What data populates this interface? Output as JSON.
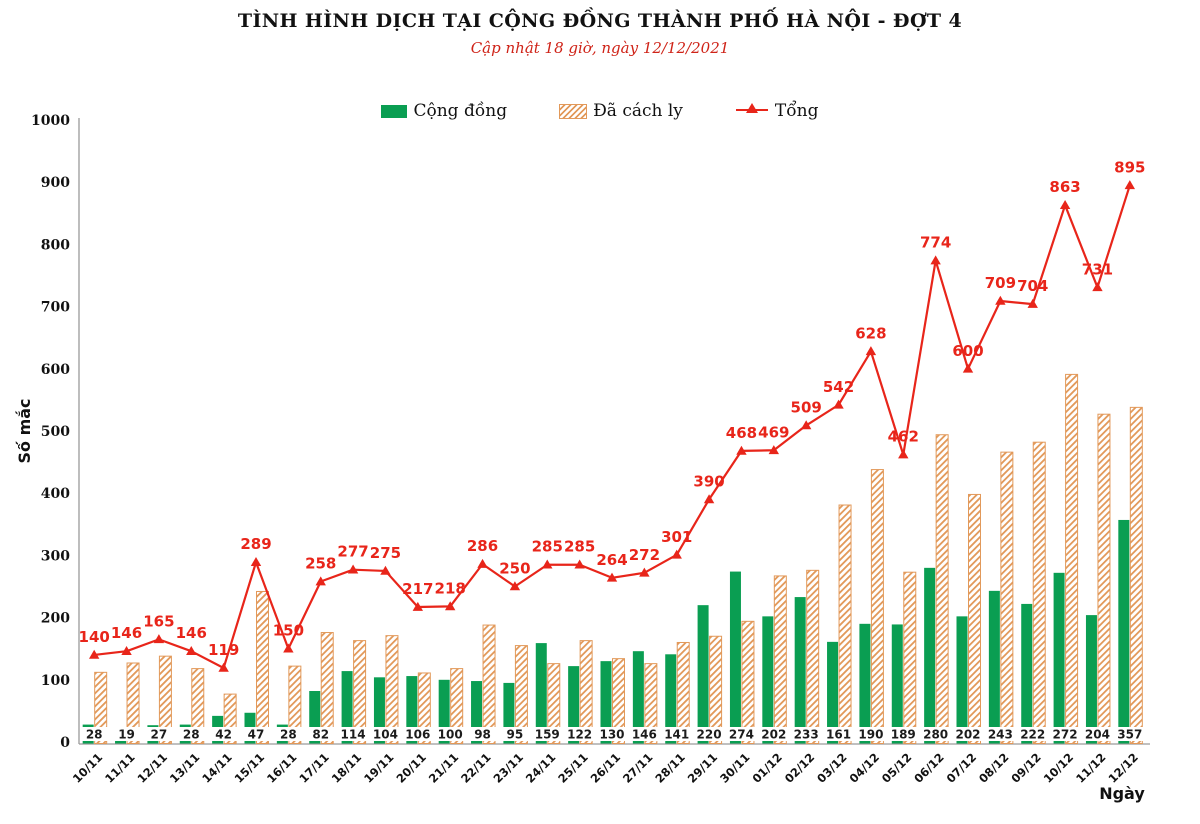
{
  "title": "TÌNH HÌNH DỊCH TẠI CỘNG ĐỒNG THÀNH PHỐ HÀ NỘI - ĐỢT 4",
  "subtitle": "Cập nhật 18 giờ, ngày 12/12/2021",
  "legend": {
    "community": "Cộng đồng",
    "quarantined": "Đã cách ly",
    "total": "Tổng"
  },
  "axes": {
    "y_label": "Số mắc",
    "x_label": "Ngày",
    "y_ticks": [
      0,
      100,
      200,
      300,
      400,
      500,
      600,
      700,
      800,
      900,
      1000
    ]
  },
  "colors": {
    "community_green": "#0a9e52",
    "hatch_orange": "#e2995a",
    "total_red": "#e8251a",
    "subtitle_red": "#cf2318",
    "axis_gray": "#9a9a9a",
    "label_black": "#1c1c1c"
  },
  "chart_data": {
    "type": "bar",
    "title": "TÌNH HÌNH DỊCH TẠI CỘNG ĐỒNG THÀNH PHỐ HÀ NỘI - ĐỢT 4",
    "subtitle": "Cập nhật 18 giờ, ngày 12/12/2021",
    "xlabel": "Ngày",
    "ylabel": "Số mắc",
    "ylim": [
      0,
      1000
    ],
    "grid": false,
    "legend_position": "top",
    "categories": [
      "10/11",
      "11/11",
      "12/11",
      "13/11",
      "14/11",
      "15/11",
      "16/11",
      "17/11",
      "18/11",
      "19/11",
      "20/11",
      "21/11",
      "22/11",
      "23/11",
      "24/11",
      "25/11",
      "26/11",
      "27/11",
      "28/11",
      "29/11",
      "30/11",
      "01/12",
      "02/12",
      "03/12",
      "04/12",
      "05/12",
      "06/12",
      "07/12",
      "08/12",
      "09/12",
      "10/12",
      "11/12",
      "12/12"
    ],
    "series": [
      {
        "name": "Cộng đồng",
        "type": "bar",
        "style": "solid-green",
        "labeled": true,
        "values": [
          28,
          19,
          27,
          28,
          42,
          47,
          28,
          82,
          114,
          104,
          106,
          100,
          98,
          95,
          159,
          122,
          130,
          146,
          141,
          220,
          274,
          202,
          233,
          161,
          190,
          189,
          280,
          202,
          243,
          222,
          272,
          204,
          357
        ]
      },
      {
        "name": "Đã cách ly",
        "type": "bar",
        "style": "hatched-orange",
        "labeled": false,
        "values": [
          112,
          127,
          138,
          118,
          77,
          242,
          122,
          176,
          163,
          171,
          111,
          118,
          188,
          155,
          126,
          163,
          134,
          126,
          160,
          170,
          194,
          267,
          276,
          381,
          438,
          273,
          494,
          398,
          466,
          482,
          591,
          527,
          538
        ]
      },
      {
        "name": "Tổng",
        "type": "line",
        "marker": "triangle",
        "labeled": true,
        "values": [
          140,
          146,
          165,
          146,
          119,
          289,
          150,
          258,
          277,
          275,
          217,
          218,
          286,
          250,
          285,
          285,
          264,
          272,
          301,
          390,
          468,
          469,
          509,
          542,
          628,
          462,
          774,
          600,
          709,
          704,
          863,
          731,
          895
        ]
      }
    ]
  }
}
